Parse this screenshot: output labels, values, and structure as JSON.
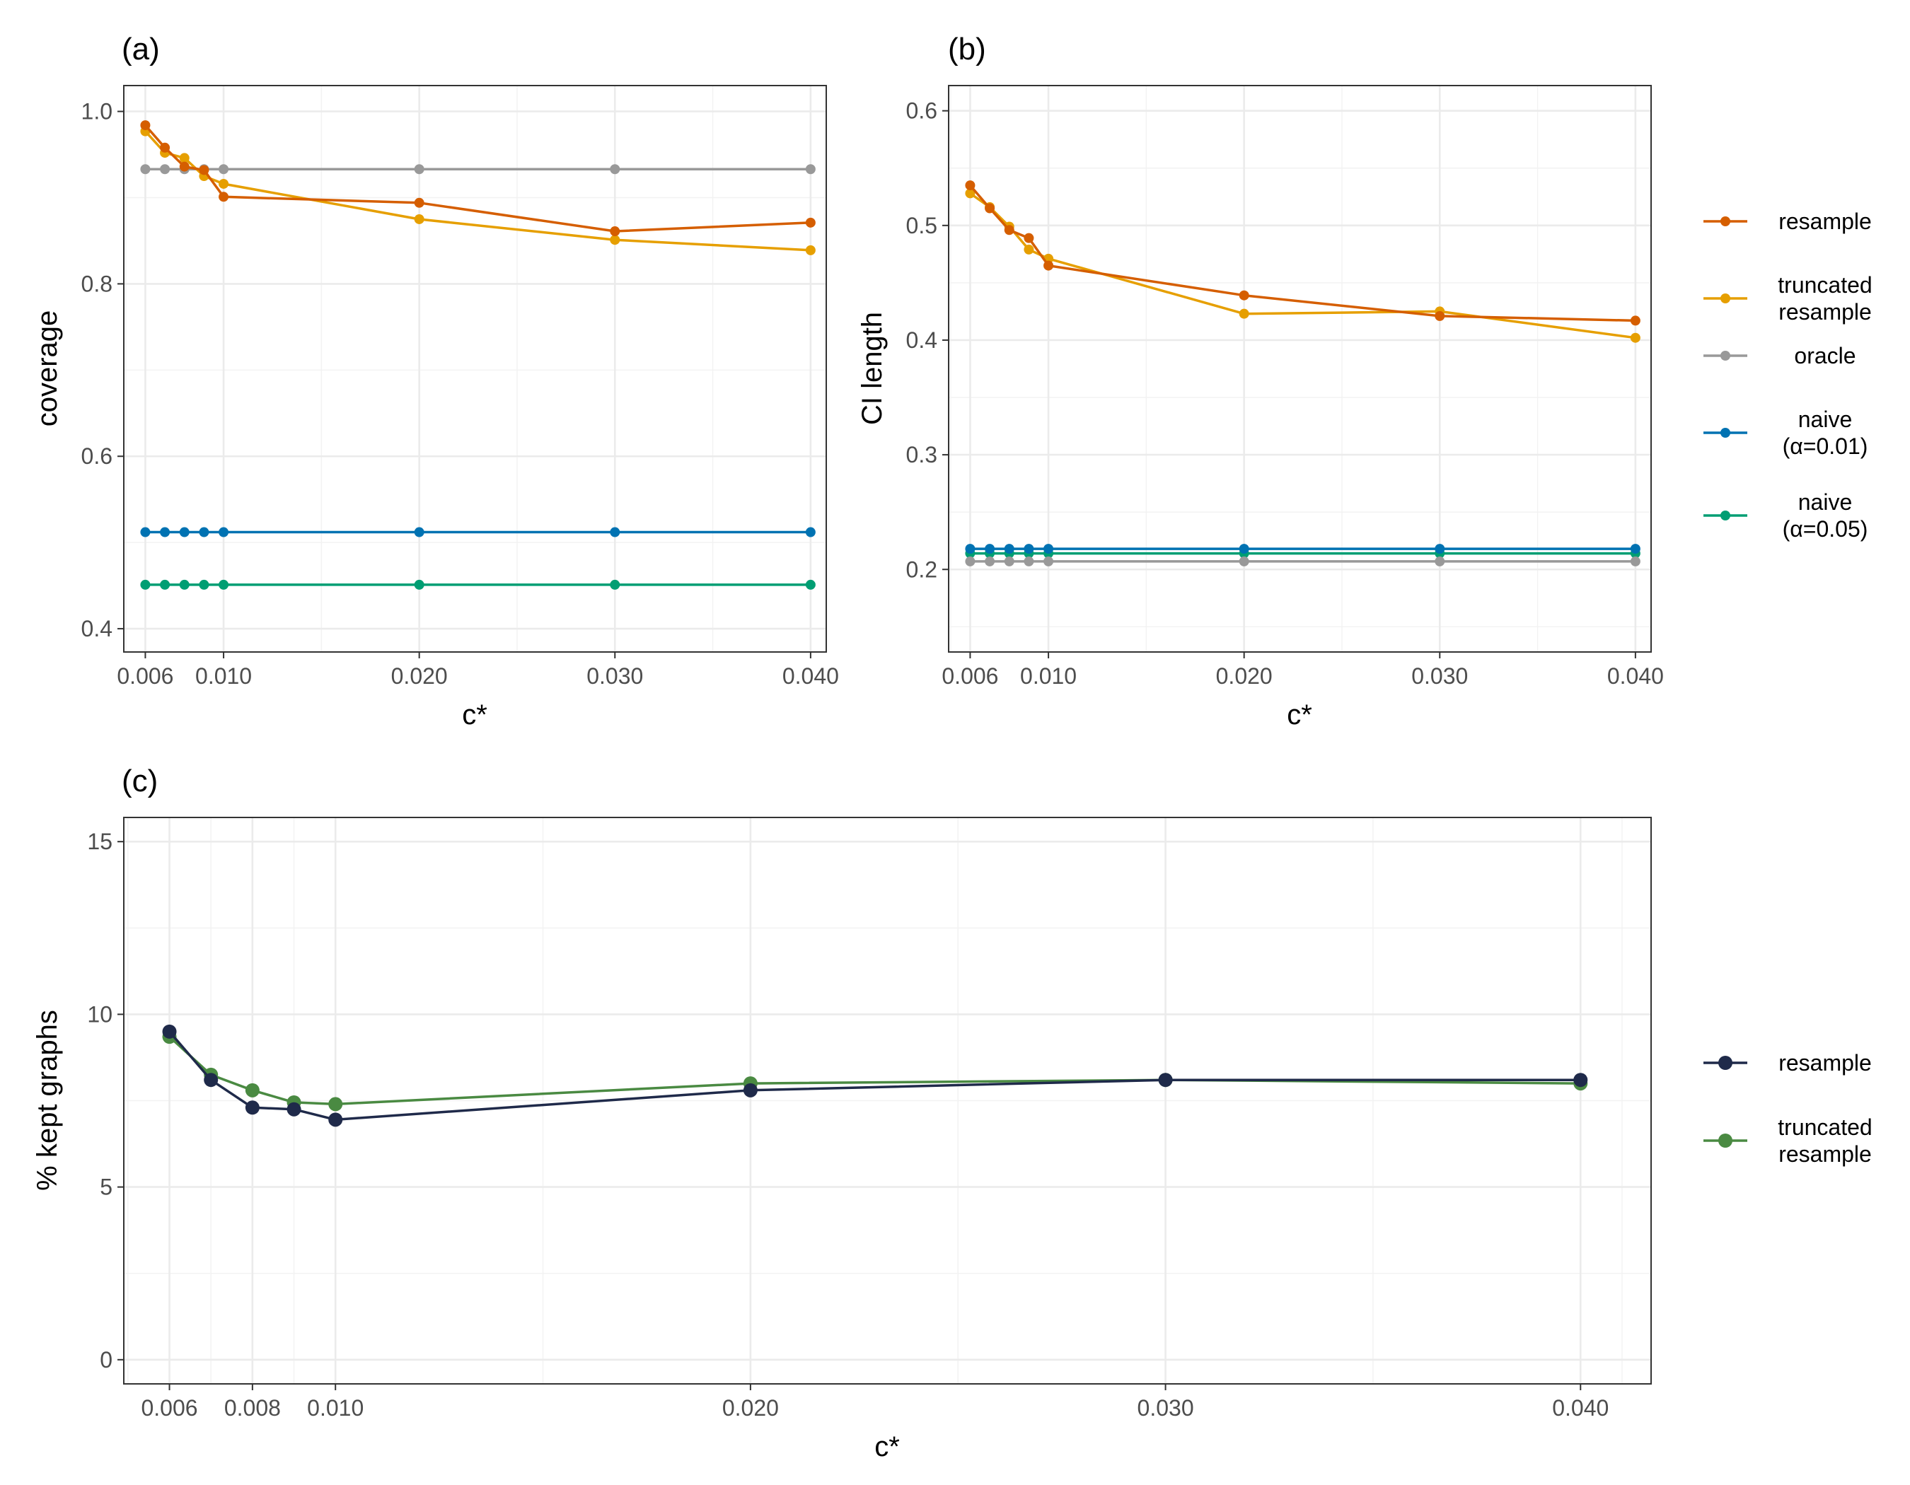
{
  "chart_data": [
    {
      "id": "a",
      "type": "line",
      "panel_label": "(a)",
      "xlabel": "c*",
      "ylabel": "coverage",
      "xlim": [
        0.0049,
        0.0408
      ],
      "ylim": [
        0.373,
        1.03
      ],
      "x_ticks": [
        0.006,
        0.01,
        0.02,
        0.03,
        0.04
      ],
      "x_tick_labels": [
        "0.006",
        "0.010",
        "0.020",
        "0.030",
        "0.040"
      ],
      "y_ticks": [
        0.4,
        0.6,
        0.8,
        1.0
      ],
      "y_tick_labels": [
        "0.4",
        "0.6",
        "0.8",
        "1.0"
      ],
      "x_minor_grid": [
        0.005,
        0.015,
        0.025,
        0.035
      ],
      "y_minor_grid": [
        0.5,
        0.7,
        0.9
      ],
      "x": [
        0.006,
        0.007,
        0.008,
        0.009,
        0.01,
        0.02,
        0.03,
        0.04
      ],
      "series": [
        {
          "name": "resample",
          "color": "#D55E00",
          "values": [
            0.984,
            0.958,
            0.936,
            0.932,
            0.901,
            0.894,
            0.861,
            0.871
          ]
        },
        {
          "name": "truncated resample",
          "color": "#E69F00",
          "values": [
            0.977,
            0.952,
            0.946,
            0.925,
            0.916,
            0.875,
            0.851,
            0.839
          ]
        },
        {
          "name": "oracle",
          "color": "#999999",
          "values": [
            0.933,
            0.933,
            0.933,
            0.933,
            0.933,
            0.933,
            0.933,
            0.933
          ]
        },
        {
          "name": "naive (α=0.01)",
          "color": "#0072B2",
          "values": [
            0.512,
            0.512,
            0.512,
            0.512,
            0.512,
            0.512,
            0.512,
            0.512
          ]
        },
        {
          "name": "naive (α=0.05)",
          "color": "#009E73",
          "values": [
            0.451,
            0.451,
            0.451,
            0.451,
            0.451,
            0.451,
            0.451,
            0.451
          ]
        }
      ]
    },
    {
      "id": "b",
      "type": "line",
      "panel_label": "(b)",
      "xlabel": "c*",
      "ylabel": "CI length",
      "xlim": [
        0.0049,
        0.0408
      ],
      "ylim": [
        0.128,
        0.622
      ],
      "x_ticks": [
        0.006,
        0.01,
        0.02,
        0.03,
        0.04
      ],
      "x_tick_labels": [
        "0.006",
        "0.010",
        "0.020",
        "0.030",
        "0.040"
      ],
      "y_ticks": [
        0.2,
        0.3,
        0.4,
        0.5,
        0.6
      ],
      "y_tick_labels": [
        "0.2",
        "0.3",
        "0.4",
        "0.5",
        "0.6"
      ],
      "x_minor_grid": [
        0.005,
        0.015,
        0.025,
        0.035
      ],
      "y_minor_grid": [
        0.15,
        0.25,
        0.35,
        0.45,
        0.55
      ],
      "x": [
        0.006,
        0.007,
        0.008,
        0.009,
        0.01,
        0.02,
        0.03,
        0.04
      ],
      "series": [
        {
          "name": "resample",
          "color": "#D55E00",
          "values": [
            0.535,
            0.515,
            0.496,
            0.489,
            0.465,
            0.439,
            0.421,
            0.417
          ]
        },
        {
          "name": "truncated resample",
          "color": "#E69F00",
          "values": [
            0.528,
            0.516,
            0.499,
            0.479,
            0.471,
            0.423,
            0.425,
            0.402
          ]
        },
        {
          "name": "oracle",
          "color": "#999999",
          "values": [
            0.207,
            0.207,
            0.207,
            0.207,
            0.207,
            0.207,
            0.207,
            0.207
          ]
        },
        {
          "name": "naive (α=0.01)",
          "color": "#0072B2",
          "values": [
            0.218,
            0.218,
            0.218,
            0.218,
            0.218,
            0.218,
            0.218,
            0.218
          ]
        },
        {
          "name": "naive (α=0.05)",
          "color": "#009E73",
          "values": [
            0.214,
            0.214,
            0.214,
            0.214,
            0.214,
            0.214,
            0.214,
            0.214
          ]
        }
      ]
    },
    {
      "id": "c",
      "type": "line",
      "panel_label": "(c)",
      "xlabel": "c*",
      "ylabel": "% kept graphs",
      "xlim": [
        0.0049,
        0.0417
      ],
      "ylim": [
        -0.7,
        15.7
      ],
      "x_ticks": [
        0.006,
        0.008,
        0.01,
        0.02,
        0.03,
        0.04
      ],
      "x_tick_labels": [
        "0.006",
        "0.008",
        "0.010",
        "0.020",
        "0.030",
        "0.040"
      ],
      "y_ticks": [
        0,
        5,
        10,
        15
      ],
      "y_tick_labels": [
        "0",
        "5",
        "10",
        "15"
      ],
      "x_minor_grid": [
        0.005,
        0.007,
        0.009,
        0.015,
        0.025,
        0.035,
        0.041
      ],
      "y_minor_grid": [
        2.5,
        7.5,
        12.5
      ],
      "x": [
        0.006,
        0.007,
        0.008,
        0.009,
        0.01,
        0.02,
        0.03,
        0.04
      ],
      "series": [
        {
          "name": "resample",
          "color": "#1F2A4A",
          "values": [
            9.5,
            8.1,
            7.3,
            7.25,
            6.95,
            7.8,
            8.1,
            8.1
          ]
        },
        {
          "name": "truncated resample",
          "color": "#4A8A42",
          "values": [
            9.35,
            8.25,
            7.8,
            7.45,
            7.4,
            8.0,
            8.1,
            8.0
          ]
        }
      ]
    }
  ],
  "legends": {
    "top": [
      {
        "lines": [
          "resample"
        ],
        "color": "#D55E00"
      },
      {
        "lines": [
          "truncated",
          "resample"
        ],
        "color": "#E69F00"
      },
      {
        "lines": [
          "oracle"
        ],
        "color": "#999999"
      },
      {
        "lines": [
          "naive",
          "(α=0.01)"
        ],
        "color": "#0072B2"
      },
      {
        "lines": [
          "naive",
          "(α=0.05)"
        ],
        "color": "#009E73"
      }
    ],
    "bottom": [
      {
        "lines": [
          "resample"
        ],
        "color": "#1F2A4A"
      },
      {
        "lines": [
          "truncated",
          "resample"
        ],
        "color": "#4A8A42"
      }
    ]
  }
}
